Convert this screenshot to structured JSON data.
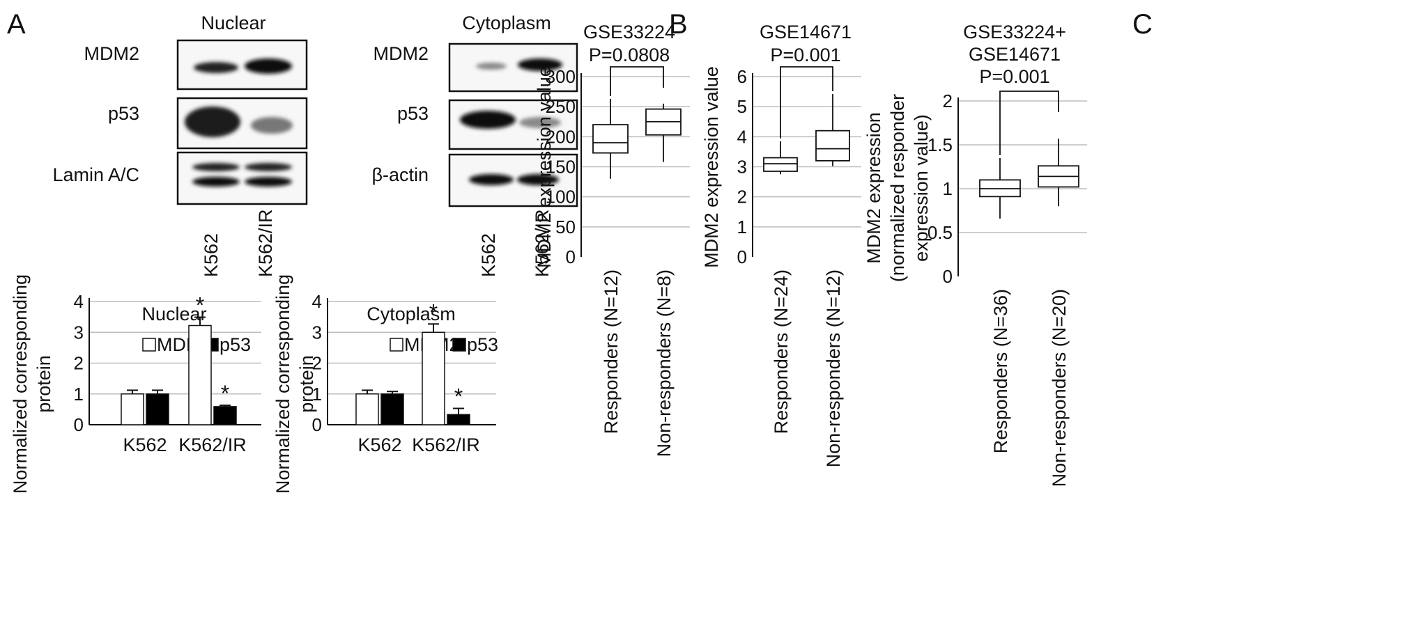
{
  "panels": {
    "a": "A",
    "b": "B",
    "c": "C"
  },
  "blots": {
    "nuclear": {
      "title": "Nuclear",
      "rows": [
        "MDM2",
        "p53",
        "Lamin A/C"
      ],
      "lanes": [
        "K562",
        "K562/IR"
      ]
    },
    "cytoplasm": {
      "title": "Cytoplasm",
      "rows": [
        "MDM2",
        "p53",
        "β-actin"
      ],
      "lanes": [
        "K562",
        "K562/IR"
      ]
    }
  },
  "chart_data": [
    {
      "id": "A-nuclear",
      "type": "bar",
      "title": "Nuclear",
      "ylabel": "Normalized corresponding protein",
      "ylim": [
        0,
        4
      ],
      "yticks": [
        0,
        1,
        2,
        3,
        4
      ],
      "categories": [
        "K562",
        "K562/IR"
      ],
      "series": [
        {
          "name": "MDM2",
          "values": [
            1.0,
            3.22
          ],
          "errors": [
            0.12,
            0.27
          ],
          "fill": "#ffffff"
        },
        {
          "name": "p53",
          "values": [
            1.0,
            0.59
          ],
          "errors": [
            0.12,
            0.04
          ],
          "fill": "#000000"
        }
      ],
      "significance": [
        [
          false,
          true
        ],
        [
          false,
          true
        ]
      ],
      "significance_mark": "*",
      "grid": true,
      "legend": "top"
    },
    {
      "id": "A-cytoplasm",
      "type": "bar",
      "title": "Cytoplasm",
      "ylabel": "Normalized corresponding protein",
      "ylim": [
        0,
        4
      ],
      "yticks": [
        0,
        1,
        2,
        3,
        4
      ],
      "categories": [
        "K562",
        "K562/IR"
      ],
      "series": [
        {
          "name": "MDM2",
          "values": [
            1.0,
            3.0
          ],
          "errors": [
            0.12,
            0.27
          ],
          "fill": "#ffffff"
        },
        {
          "name": "p53",
          "values": [
            1.0,
            0.33
          ],
          "errors": [
            0.08,
            0.2
          ],
          "fill": "#000000"
        }
      ],
      "significance": [
        [
          false,
          true
        ],
        [
          false,
          true
        ]
      ],
      "significance_mark": "*",
      "grid": true,
      "legend": "top"
    },
    {
      "id": "B-GSE33224",
      "type": "box",
      "title_lines": [
        "GSE33224",
        "P=0.0808"
      ],
      "ylabel": "MDM2 expression value",
      "ylim": [
        0,
        300
      ],
      "yticks": [
        0,
        50,
        100,
        150,
        200,
        250,
        300
      ],
      "categories": [
        "Responders (N=12)",
        "Non-responders (N=8)"
      ],
      "boxes": [
        {
          "min": 130,
          "q1": 173,
          "median": 190,
          "q3": 220,
          "max": 263
        },
        {
          "min": 158,
          "q1": 203,
          "median": 225,
          "q3": 246,
          "max": 255
        }
      ],
      "grid": true
    },
    {
      "id": "B-GSE14671",
      "type": "box",
      "title_lines": [
        "GSE14671",
        "P=0.001"
      ],
      "ylabel": "MDM2 expression value",
      "ylim": [
        0,
        6
      ],
      "yticks": [
        0,
        1,
        2,
        3,
        4,
        5,
        6
      ],
      "categories": [
        "Responders (N=24)",
        "Non-responders (N=12)"
      ],
      "boxes": [
        {
          "min": 2.75,
          "q1": 2.85,
          "median": 3.1,
          "q3": 3.3,
          "max": 3.85
        },
        {
          "min": 3.02,
          "q1": 3.2,
          "median": 3.6,
          "q3": 4.2,
          "max": 5.42
        }
      ],
      "grid": true
    },
    {
      "id": "C-combined",
      "type": "box",
      "title_lines": [
        "GSE33224+",
        "GSE14671",
        "P=0.001"
      ],
      "ylabel_lines": [
        "MDM2 expression",
        "(normalized responder",
        "expression value)"
      ],
      "ylim": [
        0,
        2
      ],
      "yticks": [
        0,
        0.5,
        1,
        1.5,
        2
      ],
      "categories": [
        "Responders (N=36)",
        "Non-responders (N=20)"
      ],
      "boxes": [
        {
          "min": 0.66,
          "q1": 0.91,
          "median": 1.0,
          "q3": 1.1,
          "max": 1.35
        },
        {
          "min": 0.8,
          "q1": 1.02,
          "median": 1.14,
          "q3": 1.26,
          "max": 1.57
        }
      ],
      "grid": true
    }
  ]
}
